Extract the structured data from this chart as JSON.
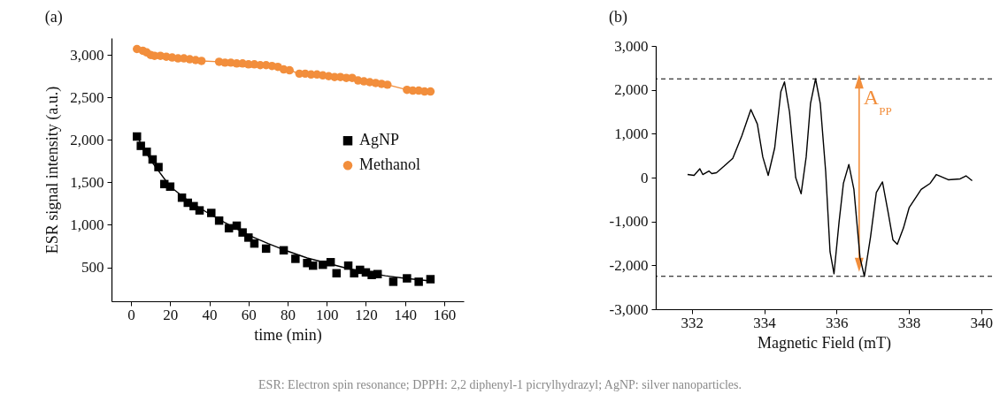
{
  "chart_data": [
    {
      "type": "scatter",
      "title": "(a)",
      "xlabel": "time (min)",
      "ylabel": "ESR signal intensity (a.u.)",
      "xlim": [
        -10,
        170
      ],
      "xticks": [
        0,
        20,
        40,
        60,
        80,
        100,
        120,
        140,
        160
      ],
      "ylim": [
        100,
        3200
      ],
      "yticks": [
        {
          "value": 500,
          "label": "500"
        },
        {
          "value": 1000,
          "label": "1,000"
        },
        {
          "value": 1500,
          "label": "1,500"
        },
        {
          "value": 2000,
          "label": "2,000"
        },
        {
          "value": 2500,
          "label": "2,500"
        },
        {
          "value": 3000,
          "label": "3,000"
        }
      ],
      "legend": "right",
      "grid": false,
      "series": [
        {
          "name": "AgNP",
          "marker": "square",
          "color": "#000000",
          "x": [
            3,
            5,
            8,
            11,
            14,
            17,
            20,
            26,
            29,
            32,
            35,
            41,
            45,
            50,
            54,
            57,
            60,
            63,
            69,
            78,
            84,
            90,
            93,
            98,
            102,
            105,
            111,
            114,
            117,
            120,
            123,
            126,
            134,
            141,
            147,
            153
          ],
          "values": [
            2040,
            1930,
            1860,
            1770,
            1680,
            1480,
            1450,
            1320,
            1260,
            1220,
            1170,
            1140,
            1050,
            960,
            990,
            910,
            850,
            780,
            720,
            700,
            600,
            550,
            520,
            530,
            560,
            430,
            520,
            430,
            470,
            440,
            410,
            420,
            330,
            370,
            330,
            360
          ]
        },
        {
          "name": "Methanol",
          "type": "line",
          "marker": "circle",
          "color": "#f28e3c",
          "x": [
            3,
            6,
            8,
            10,
            12,
            15,
            18,
            21,
            24,
            27,
            30,
            33,
            36,
            45,
            48,
            51,
            54,
            57,
            60,
            63,
            66,
            69,
            72,
            75,
            78,
            81,
            86,
            89,
            92,
            95,
            98,
            101,
            104,
            107,
            110,
            113,
            116,
            119,
            122,
            125,
            128,
            131,
            141,
            144,
            147,
            150,
            153
          ],
          "values": [
            3070,
            3050,
            3030,
            3000,
            2990,
            2990,
            2980,
            2970,
            2960,
            2960,
            2950,
            2940,
            2930,
            2920,
            2910,
            2910,
            2900,
            2900,
            2890,
            2890,
            2880,
            2880,
            2870,
            2860,
            2830,
            2820,
            2780,
            2780,
            2770,
            2770,
            2760,
            2750,
            2740,
            2740,
            2730,
            2730,
            2700,
            2690,
            2680,
            2670,
            2660,
            2650,
            2590,
            2580,
            2580,
            2570,
            2570
          ]
        },
        {
          "type": "line",
          "marker": "none",
          "color": "#000000",
          "x": [
            3,
            10,
            20,
            30,
            40,
            50,
            60,
            70,
            80,
            90,
            100,
            110,
            120,
            130,
            140,
            153
          ],
          "values": [
            2040,
            1760,
            1450,
            1270,
            1130,
            1000,
            880,
            780,
            690,
            610,
            550,
            490,
            440,
            400,
            370,
            340
          ]
        }
      ],
      "annotations": [
        "ESR: Electron spin resonance; DPPH: 2,2 diphenyl-1 picrylhydrazyl; AgNP: silver nanoparticles."
      ]
    },
    {
      "type": "line",
      "title": "(b)",
      "xlabel": "Magnetic Field (mT)",
      "xlim": [
        331,
        340.3
      ],
      "xticks": [
        332,
        334,
        336,
        338,
        340
      ],
      "ylim": [
        -3000,
        3000
      ],
      "yticks": [
        {
          "value": -3000,
          "label": "-3,000"
        },
        {
          "value": -2000,
          "label": "-2,000"
        },
        {
          "value": -1000,
          "label": "-1,000"
        },
        0,
        {
          "value": 1000,
          "label": "1,000"
        },
        {
          "value": 2000,
          "label": "2,000"
        },
        {
          "value": 3000,
          "label": "3,000"
        }
      ],
      "grid": false,
      "line_style": "solid",
      "series": [
        {
          "color": "#000000",
          "x": [
            331.88,
            332.06,
            332.22,
            332.3,
            332.47,
            332.55,
            332.68,
            332.89,
            333.13,
            333.38,
            333.63,
            333.81,
            333.96,
            334.11,
            334.29,
            334.46,
            334.56,
            334.7,
            334.87,
            335.02,
            335.16,
            335.28,
            335.42,
            335.55,
            335.7,
            335.82,
            335.93,
            336.07,
            336.19,
            336.34,
            336.48,
            336.65,
            336.77,
            336.94,
            337.1,
            337.27,
            337.43,
            337.56,
            337.68,
            337.85,
            338.01,
            338.34,
            338.59,
            338.76,
            339.09,
            339.42,
            339.58,
            339.75
          ],
          "values": [
            70,
            50,
            200,
            70,
            150,
            90,
            110,
            260,
            440,
            950,
            1550,
            1220,
            470,
            50,
            680,
            1960,
            2180,
            1490,
            0,
            -370,
            470,
            1690,
            2250,
            1690,
            130,
            -1690,
            -2190,
            -1010,
            -130,
            300,
            -270,
            -1830,
            -2250,
            -1350,
            -340,
            -100,
            -810,
            -1420,
            -1520,
            -1150,
            -680,
            -270,
            -130,
            70,
            -50,
            -30,
            40,
            -70
          ]
        }
      ],
      "ref_lines": [
        {
          "axis": "y",
          "value": 2250,
          "line_style": "dashed",
          "color": "#000000"
        },
        {
          "axis": "y",
          "value": -2250,
          "line_style": "dashed",
          "color": "#000000"
        }
      ],
      "annotations": [
        "A$_{PP}$"
      ]
    }
  ]
}
